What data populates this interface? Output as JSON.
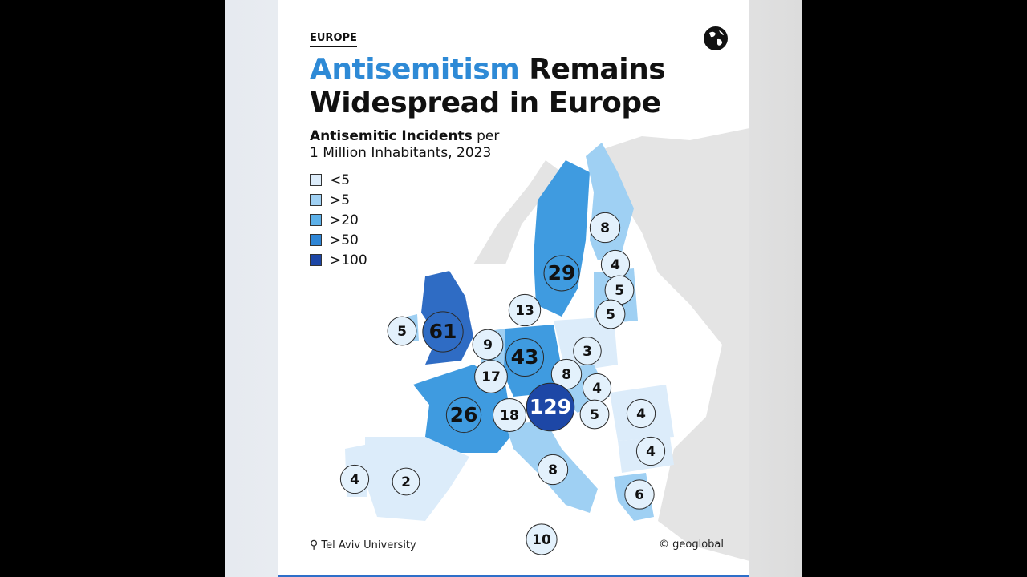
{
  "header": {
    "tag": "EUROPE",
    "title_highlight": "Antisemitism",
    "title_line1_rest": "Remains",
    "title_line2": "Widespread in Europe"
  },
  "subtitle": {
    "bold": "Antisemitic Incidents",
    "rest": "per",
    "line2": "1 Million Inhabitants, 2023"
  },
  "legend": [
    {
      "label": "<5",
      "color": "#dcecfa"
    },
    {
      "label": ">5",
      "color": "#9fd0f3"
    },
    {
      "label": ">20",
      "color": "#5cb0e8"
    },
    {
      "label": ">50",
      "color": "#2f86d6"
    },
    {
      "label": ">100",
      "color": "#1d47a6"
    }
  ],
  "values": [
    8,
    4,
    5,
    5,
    29,
    13,
    5,
    61,
    9,
    43,
    3,
    17,
    8,
    4,
    129,
    18,
    26,
    5,
    4,
    4,
    8,
    4,
    2,
    6,
    10
  ],
  "footer": {
    "source": "Tel Aviv University",
    "credit": "© geoglobal"
  }
}
